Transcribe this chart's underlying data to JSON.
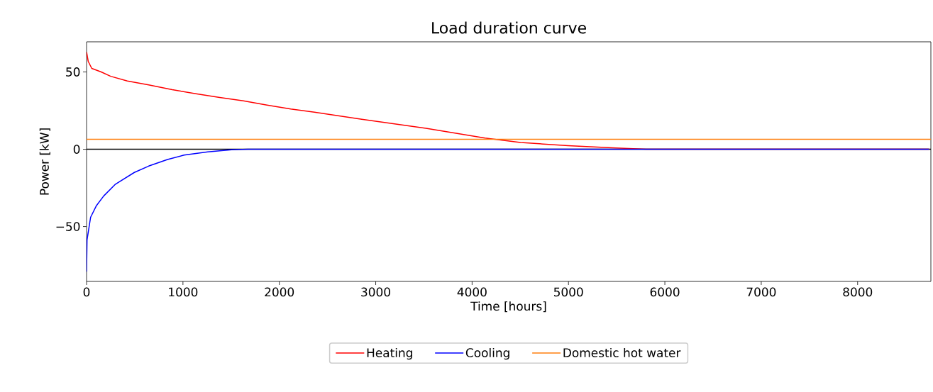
{
  "chart_data": {
    "type": "line",
    "title": "Load duration curve",
    "xlabel": "Time [hours]",
    "ylabel": "Power [kW]",
    "xlim": [
      0,
      8760
    ],
    "ylim": [
      -85.5,
      69.5
    ],
    "xticks": [
      0,
      1000,
      2000,
      3000,
      4000,
      5000,
      6000,
      7000,
      8000
    ],
    "yticks": [
      {
        "value": -50,
        "label": "−50"
      },
      0,
      50
    ],
    "grid": false,
    "legend": "bottom",
    "marker": "none",
    "line_style": "solid",
    "ref_lines": [
      {
        "axis": "y",
        "value": 0,
        "color": "#000000"
      }
    ],
    "series": [
      {
        "name": "Heating",
        "color": "#ff0000",
        "x": [
          0,
          17,
          54,
          152,
          250,
          423,
          644,
          889,
          1135,
          1381,
          1627,
          1872,
          2118,
          2364,
          2609,
          2855,
          3522,
          4134,
          4503,
          4996,
          5490,
          5807,
          8740
        ],
        "values": [
          63,
          56.9,
          52.3,
          50,
          47.2,
          44.2,
          41.6,
          38.5,
          35.9,
          33.5,
          31.3,
          28.6,
          26,
          24,
          21.7,
          19.4,
          13.6,
          7.2,
          4.4,
          2.3,
          0.8,
          0,
          0
        ]
      },
      {
        "name": "Cooling",
        "color": "#0000ff",
        "x": [
          0,
          5,
          42,
          103,
          177,
          300,
          496,
          644,
          840,
          1012,
          1258,
          1504,
          1676,
          8740
        ],
        "values": [
          -79.2,
          -58.6,
          -44,
          -36.4,
          -30.3,
          -22.6,
          -15,
          -10.9,
          -6.6,
          -3.8,
          -1.7,
          -0.3,
          0,
          0
        ]
      },
      {
        "name": "Domestic hot water",
        "color": "#ff7f0e",
        "x": [
          0,
          8760
        ],
        "values": [
          6.4,
          6.4
        ]
      }
    ]
  }
}
